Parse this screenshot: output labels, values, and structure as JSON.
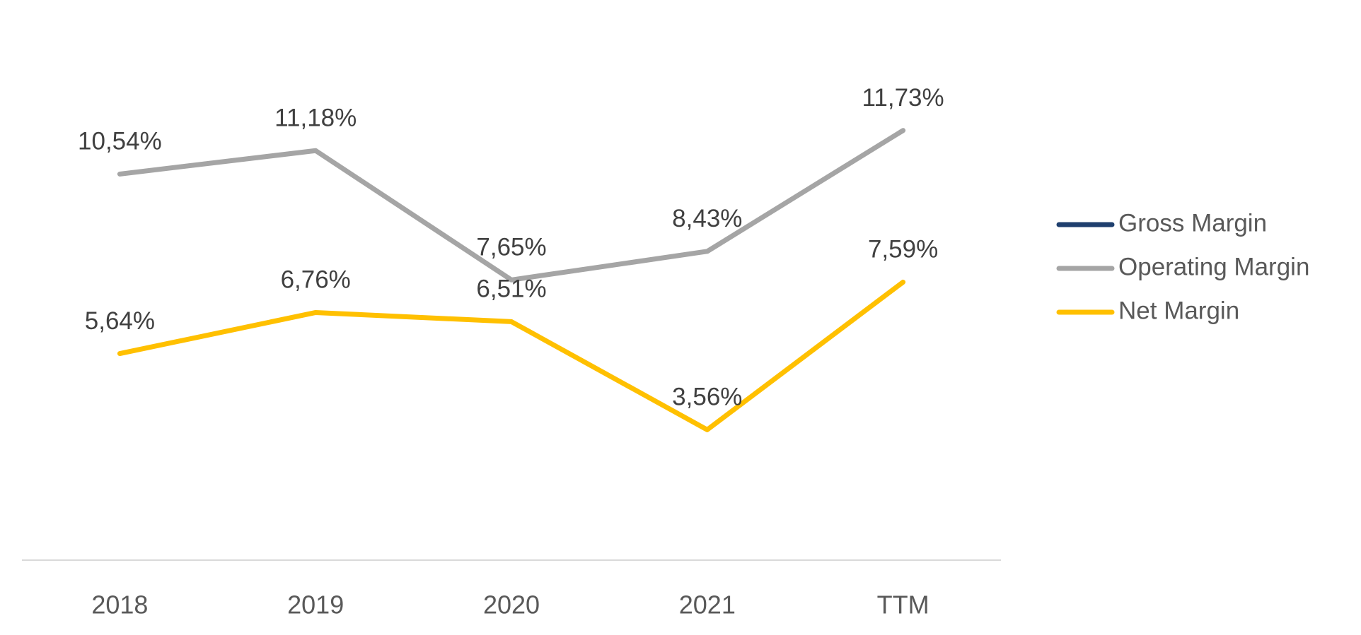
{
  "chart_data": {
    "type": "line",
    "categories": [
      "2018",
      "2019",
      "2020",
      "2021",
      "TTM"
    ],
    "series": [
      {
        "name": "Gross Margin",
        "color": "#1f3f6e",
        "values": [
          null,
          null,
          null,
          null,
          null
        ]
      },
      {
        "name": "Operating Margin",
        "color": "#a5a5a5",
        "values": [
          10.54,
          11.18,
          7.65,
          8.43,
          11.73
        ],
        "value_labels": [
          "10,54%",
          "11,18%",
          "7,65%",
          "8,43%",
          "11,73%"
        ]
      },
      {
        "name": "Net Margin",
        "color": "#ffc000",
        "values": [
          5.64,
          6.76,
          6.51,
          3.56,
          7.59
        ],
        "value_labels": [
          "5,64%",
          "6,76%",
          "6,51%",
          "3,56%",
          "7,59%"
        ]
      }
    ],
    "ylim": [
      0,
      14
    ],
    "legend": "right"
  }
}
